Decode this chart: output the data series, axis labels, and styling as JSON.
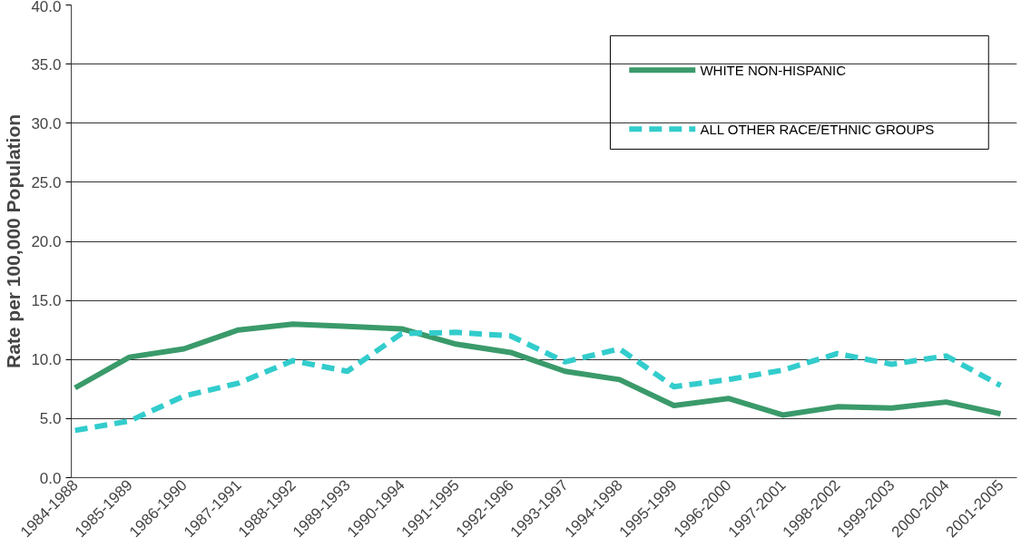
{
  "chart_data": {
    "type": "line",
    "ylabel": "Rate per 100,000 Population",
    "categories": [
      "1984-1988",
      "1985-1989",
      "1986-1990",
      "1987-1991",
      "1988-1992",
      "1989-1993",
      "1990-1994",
      "1991-1995",
      "1992-1996",
      "1993-1997",
      "1994-1998",
      "1995-1999",
      "1996-2000",
      "1997-2001",
      "1998-2002",
      "1999-2003",
      "2000-2004",
      "2001-2005"
    ],
    "series": [
      {
        "name": "WHITE NON-HISPANIC",
        "color": "#3a9a6a",
        "line_style": "solid",
        "values": [
          7.6,
          10.2,
          10.9,
          12.5,
          13.0,
          12.8,
          12.6,
          11.3,
          10.6,
          9.0,
          8.3,
          6.1,
          6.7,
          5.3,
          6.0,
          5.9,
          6.4,
          5.4
        ]
      },
      {
        "name": "ALL OTHER RACE/ETHNIC GROUPS",
        "color": "#33cccc",
        "line_style": "dashed",
        "values": [
          4.0,
          4.8,
          6.9,
          8.0,
          9.9,
          9.0,
          12.2,
          12.3,
          12.0,
          9.8,
          10.9,
          7.7,
          8.3,
          9.1,
          10.5,
          9.6,
          10.3,
          7.8
        ]
      }
    ],
    "ylim": [
      0,
      40
    ],
    "yticks": [
      {
        "value": 0,
        "label": "0.0"
      },
      {
        "value": 5,
        "label": "5.0"
      },
      {
        "value": 10,
        "label": "10.0"
      },
      {
        "value": 15,
        "label": "15.0"
      },
      {
        "value": 20,
        "label": "20.0"
      },
      {
        "value": 25,
        "label": "25.0"
      },
      {
        "value": 30,
        "label": "30.0"
      },
      {
        "value": 35,
        "label": "35.0"
      },
      {
        "value": 40,
        "label": "40.0"
      }
    ],
    "grid": "y",
    "legend": "top right",
    "marker": "none"
  }
}
